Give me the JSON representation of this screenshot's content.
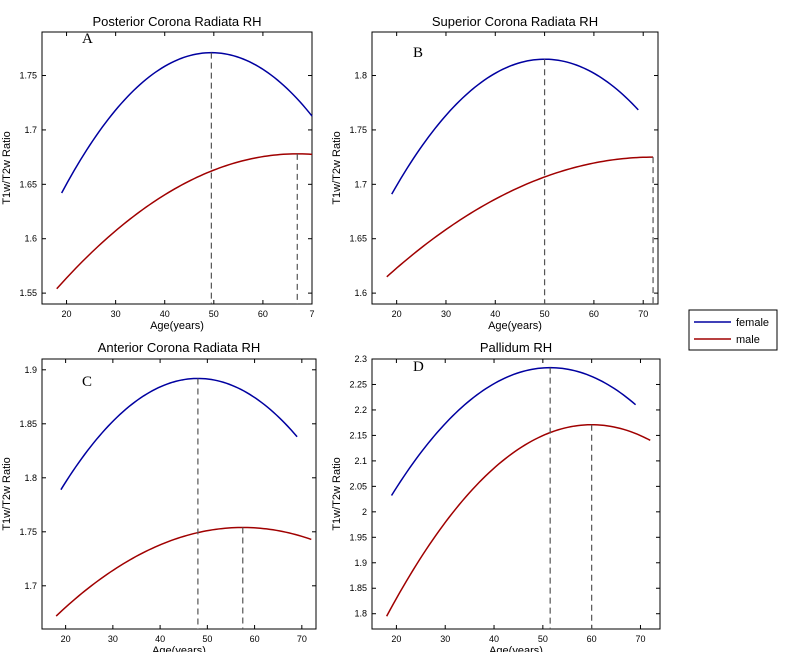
{
  "legend": {
    "entries": [
      {
        "name": "female",
        "color": "#0000a0"
      },
      {
        "name": "male",
        "color": "#a00000"
      }
    ],
    "placement": "right-middle"
  },
  "chart_data": [
    {
      "type": "line",
      "panel_label": "A",
      "title": "Posterior Corona Radiata RH",
      "xlabel": "Age(years)",
      "ylabel": "T1w/T2w Ratio",
      "xlim": [
        15,
        70
      ],
      "ylim": [
        1.54,
        1.79
      ],
      "xticks": [
        20,
        30,
        40,
        50,
        60
      ],
      "xtick_labels": [
        "20",
        "30",
        "40",
        "50",
        "60"
      ],
      "edge_tick_label": "7",
      "yticks": [
        1.55,
        1.6,
        1.65,
        1.7,
        1.75
      ],
      "ytick_labels": [
        "1.55",
        "1.6",
        "1.65",
        "1.7",
        "1.75"
      ],
      "series": [
        {
          "name": "female",
          "color": "#0000a0",
          "x_start": 19,
          "x_end": 70,
          "peak_x": 49.5,
          "peak_y": 1.771,
          "end_y": 1.716,
          "start_y": 1.642
        },
        {
          "name": "male",
          "color": "#a00000",
          "x_start": 18,
          "x_end": 70,
          "peak_x": 67,
          "peak_y": 1.678,
          "start_y": 1.554
        }
      ],
      "vlines": [
        49.5,
        67
      ]
    },
    {
      "type": "line",
      "panel_label": "B",
      "title": "Superior Corona Radiata RH",
      "xlabel": "Age(years)",
      "ylabel": "T1w/T2w Ratio",
      "xlim": [
        15,
        73
      ],
      "ylim": [
        1.59,
        1.84
      ],
      "xticks": [
        20,
        30,
        40,
        50,
        60,
        70
      ],
      "xtick_labels": [
        "20",
        "30",
        "40",
        "50",
        "60",
        "70"
      ],
      "yticks": [
        1.6,
        1.65,
        1.7,
        1.75,
        1.8
      ],
      "ytick_labels": [
        "1.6",
        "1.65",
        "1.7",
        "1.75",
        "1.8"
      ],
      "series": [
        {
          "name": "female",
          "color": "#0000a0",
          "x_start": 19,
          "x_end": 69,
          "peak_x": 50,
          "peak_y": 1.815,
          "end_y": 1.768,
          "start_y": 1.691
        },
        {
          "name": "male",
          "color": "#a00000",
          "x_start": 18,
          "x_end": 72,
          "peak_x": 72,
          "peak_y": 1.725,
          "start_y": 1.615
        }
      ],
      "vlines": [
        50,
        72
      ]
    },
    {
      "type": "line",
      "panel_label": "C",
      "title": "Anterior Corona Radiata RH",
      "xlabel": "Age(years)",
      "ylabel": "T1w/T2w Ratio",
      "xlim": [
        15,
        73
      ],
      "ylim": [
        1.66,
        1.91
      ],
      "xticks": [
        20,
        30,
        40,
        50,
        60,
        70
      ],
      "xtick_labels": [
        "20",
        "30",
        "40",
        "50",
        "60",
        "70"
      ],
      "yticks": [
        1.7,
        1.75,
        1.8,
        1.85,
        1.9
      ],
      "ytick_labels": [
        "1.7",
        "1.75",
        "1.8",
        "1.85",
        "1.9"
      ],
      "series": [
        {
          "name": "female",
          "color": "#0000a0",
          "x_start": 19,
          "x_end": 69,
          "peak_x": 48,
          "peak_y": 1.892,
          "end_y": 1.835,
          "start_y": 1.789
        },
        {
          "name": "male",
          "color": "#a00000",
          "x_start": 18,
          "x_end": 72,
          "peak_x": 57.5,
          "peak_y": 1.754,
          "end_y": 1.744,
          "start_y": 1.672
        }
      ],
      "vlines": [
        48,
        57.5
      ]
    },
    {
      "type": "line",
      "panel_label": "D",
      "title": "Pallidum RH",
      "xlabel": "Age(years)",
      "ylabel": "T1w/T2w Ratio",
      "xlim": [
        15,
        74
      ],
      "ylim": [
        1.77,
        2.3
      ],
      "xticks": [
        20,
        30,
        40,
        50,
        60,
        70
      ],
      "xtick_labels": [
        "20",
        "30",
        "40",
        "50",
        "60",
        "70"
      ],
      "yticks": [
        1.8,
        1.85,
        1.9,
        1.95,
        2.0,
        2.05,
        2.1,
        2.15,
        2.2,
        2.25,
        2.3
      ],
      "ytick_labels": [
        "1.8",
        "1.85",
        "1.9",
        "1.95",
        "2",
        "2.05",
        "2.1",
        "2.15",
        "2.2",
        "2.25",
        "2.3"
      ],
      "series": [
        {
          "name": "female",
          "color": "#0000a0",
          "x_start": 19,
          "x_end": 69,
          "peak_x": 51.5,
          "peak_y": 2.283,
          "end_y": 2.209,
          "start_y": 2.032
        },
        {
          "name": "male",
          "color": "#a00000",
          "x_start": 18,
          "x_end": 72,
          "peak_x": 60,
          "peak_y": 2.171,
          "end_y": 2.138,
          "start_y": 1.795
        }
      ],
      "vlines": [
        51.5,
        60
      ]
    }
  ]
}
